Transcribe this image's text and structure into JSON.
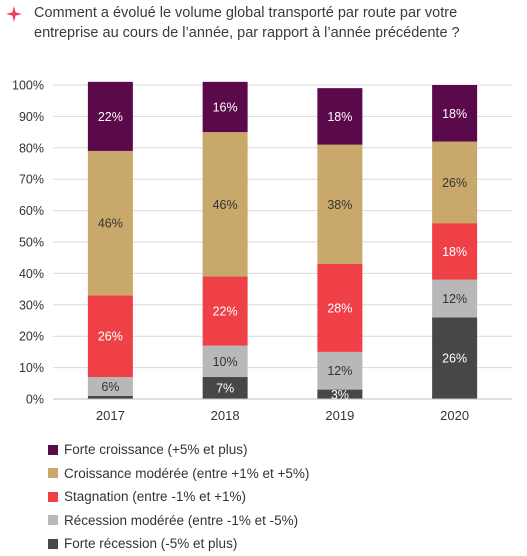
{
  "title": "Comment a évolué le volume global transporté par route par votre entreprise au cours de l’année, par rapport à l’année précédente ?",
  "icons": {
    "title_marker": "four-point-star-icon"
  },
  "colors": {
    "forte_croissance": "#5a0a4b",
    "croissance_moderee": "#c9a86b",
    "stagnation": "#ef4048",
    "recession_moderee": "#b8b8b8",
    "forte_recession": "#474747",
    "star": "#e8424a",
    "grid": "#d9d9d9"
  },
  "chart_data": {
    "type": "bar",
    "stacked": true,
    "categories": [
      "2017",
      "2018",
      "2019",
      "2020"
    ],
    "ylim": [
      0,
      100
    ],
    "yticks": [
      "0%",
      "10%",
      "20%",
      "30%",
      "40%",
      "50%",
      "60%",
      "70%",
      "80%",
      "90%",
      "100%"
    ],
    "grid": true,
    "legend_position": "bottom",
    "series": [
      {
        "name": "Forte récession (-5% et plus)",
        "color_key": "forte_recession",
        "values": [
          1,
          7,
          3,
          26
        ],
        "labels": [
          "",
          "7%",
          "3%",
          "26%"
        ]
      },
      {
        "name": "Récession modérée (entre -1% et -5%)",
        "color_key": "recession_moderee",
        "values": [
          6,
          10,
          12,
          12
        ],
        "labels": [
          "6%",
          "10%",
          "12%",
          "12%"
        ]
      },
      {
        "name": "Stagnation (entre -1% et +1%)",
        "color_key": "stagnation",
        "values": [
          26,
          22,
          28,
          18
        ],
        "labels": [
          "26%",
          "22%",
          "28%",
          "18%"
        ]
      },
      {
        "name": "Croissance modérée (entre +1% et +5%)",
        "color_key": "croissance_moderee",
        "values": [
          46,
          46,
          38,
          26
        ],
        "labels": [
          "46%",
          "46%",
          "38%",
          "26%"
        ]
      },
      {
        "name": "Forte croissance (+5% et plus)",
        "color_key": "forte_croissance",
        "values": [
          22,
          16,
          18,
          18
        ],
        "labels": [
          "22%",
          "16%",
          "18%",
          "18%"
        ]
      }
    ],
    "legend_order": [
      "Forte croissance (+5% et plus)",
      "Croissance modérée (entre +1% et +5%)",
      "Stagnation (entre -1% et +1%)",
      "Récession modérée (entre -1% et -5%)",
      "Forte récession (-5% et plus)"
    ]
  }
}
